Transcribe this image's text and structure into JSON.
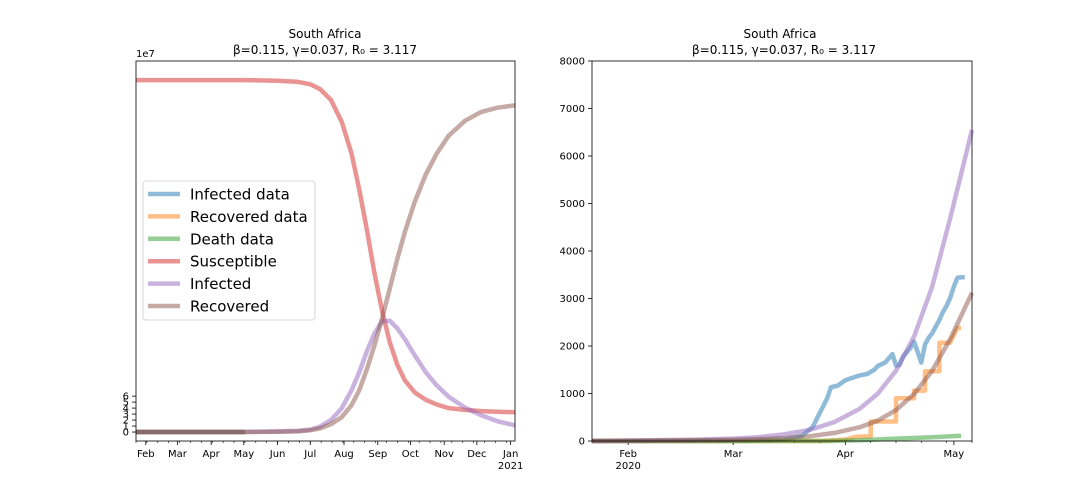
{
  "chart_data": [
    {
      "type": "line",
      "title": "South Africa",
      "subtitle": "β=0.115, γ=0.037, R₀ = 3.117",
      "y_offset_label": "1e7",
      "xlim": [
        "2020-01-23",
        "2021-01-05"
      ],
      "ylim": [
        -1.5,
        62
      ],
      "y_scale_multiplier": 10000000,
      "x_ticks": [
        {
          "date": "2020-02-01",
          "label": "Feb"
        },
        {
          "date": "2020-03-01",
          "label": "Mar"
        },
        {
          "date": "2020-04-01",
          "label": "Apr"
        },
        {
          "date": "2020-05-01",
          "label": "May"
        },
        {
          "date": "2020-06-01",
          "label": "Jun"
        },
        {
          "date": "2020-07-01",
          "label": "Jul"
        },
        {
          "date": "2020-08-01",
          "label": "Aug"
        },
        {
          "date": "2020-09-01",
          "label": "Sep"
        },
        {
          "date": "2020-10-01",
          "label": "Oct"
        },
        {
          "date": "2020-11-01",
          "label": "Nov"
        },
        {
          "date": "2020-12-01",
          "label": "Dec"
        },
        {
          "date": "2021-01-01",
          "label": "Jan",
          "label2": "2021"
        }
      ],
      "y_ticks": [
        0,
        1,
        2,
        3,
        4,
        5,
        6
      ],
      "legend": {
        "placement": "center-left",
        "entries": [
          "Infected data",
          "Recovered data",
          "Death data",
          "Susceptible",
          "Infected",
          "Recovered"
        ]
      },
      "grid": false,
      "series": [
        {
          "name": "Infected data",
          "color": "#1f77b4",
          "x": [
            "2020-01-23",
            "2020-05-02"
          ],
          "y": [
            0.0,
            0.0
          ]
        },
        {
          "name": "Recovered data",
          "color": "#ff7f0e",
          "x": [
            "2020-01-23",
            "2020-05-02"
          ],
          "y": [
            0.0,
            0.0
          ]
        },
        {
          "name": "Death data",
          "color": "#2ca02c",
          "x": [
            "2020-01-23",
            "2020-05-02"
          ],
          "y": [
            0.0,
            0.0
          ]
        },
        {
          "name": "Susceptible",
          "color": "#d62728",
          "x": [
            "2020-01-23",
            "2020-03-01",
            "2020-05-01",
            "2020-06-01",
            "2020-06-20",
            "2020-07-01",
            "2020-07-10",
            "2020-07-20",
            "2020-07-30",
            "2020-08-08",
            "2020-08-15",
            "2020-08-22",
            "2020-08-29",
            "2020-09-05",
            "2020-09-12",
            "2020-09-19",
            "2020-09-26",
            "2020-10-05",
            "2020-10-15",
            "2020-10-25",
            "2020-11-05",
            "2020-11-20",
            "2020-12-05",
            "2020-12-20",
            "2021-01-05"
          ],
          "y": [
            58.8,
            58.8,
            58.8,
            58.7,
            58.5,
            58.1,
            57.3,
            55.5,
            51.8,
            46.5,
            40.5,
            33.8,
            26.5,
            20.2,
            15.0,
            11.2,
            8.6,
            6.6,
            5.4,
            4.6,
            4.0,
            3.7,
            3.5,
            3.4,
            3.3
          ]
        },
        {
          "name": "Infected",
          "color": "#9467bd",
          "x": [
            "2020-01-23",
            "2020-05-01",
            "2020-06-01",
            "2020-06-20",
            "2020-07-01",
            "2020-07-10",
            "2020-07-20",
            "2020-07-30",
            "2020-08-08",
            "2020-08-15",
            "2020-08-22",
            "2020-08-29",
            "2020-09-05",
            "2020-09-12",
            "2020-09-19",
            "2020-09-26",
            "2020-10-05",
            "2020-10-15",
            "2020-10-25",
            "2020-11-05",
            "2020-11-20",
            "2020-12-05",
            "2020-12-20",
            "2021-01-05"
          ],
          "y": [
            0.0,
            0.0,
            0.1,
            0.2,
            0.4,
            0.9,
            2.0,
            4.0,
            7.0,
            10.0,
            13.5,
            16.5,
            18.5,
            18.6,
            17.3,
            15.5,
            12.8,
            10.0,
            7.8,
            5.9,
            4.1,
            2.8,
            1.8,
            1.1
          ]
        },
        {
          "name": "Recovered",
          "color": "#8c564b",
          "x": [
            "2020-01-23",
            "2020-05-01",
            "2020-06-01",
            "2020-06-20",
            "2020-07-01",
            "2020-07-10",
            "2020-07-20",
            "2020-07-30",
            "2020-08-08",
            "2020-08-15",
            "2020-08-22",
            "2020-08-29",
            "2020-09-05",
            "2020-09-12",
            "2020-09-19",
            "2020-09-26",
            "2020-10-05",
            "2020-10-15",
            "2020-10-25",
            "2020-11-05",
            "2020-11-20",
            "2020-12-05",
            "2020-12-20",
            "2021-01-05"
          ],
          "y": [
            0.0,
            0.0,
            0.05,
            0.1,
            0.3,
            0.6,
            1.3,
            2.5,
            4.5,
            7.0,
            10.5,
            14.5,
            19.0,
            24.0,
            29.0,
            33.5,
            38.5,
            43.0,
            46.5,
            49.5,
            52.0,
            53.5,
            54.2,
            54.6
          ]
        }
      ]
    },
    {
      "type": "line",
      "title": "South Africa",
      "subtitle": "β=0.115, γ=0.037, R₀ = 3.117",
      "xlim": [
        "2020-01-22",
        "2020-05-06"
      ],
      "ylim": [
        0,
        8000
      ],
      "x_ticks": [
        {
          "date": "2020-02-01",
          "label": "Feb",
          "label2": "2020"
        },
        {
          "date": "2020-03-01",
          "label": "Mar"
        },
        {
          "date": "2020-04-01",
          "label": "Apr"
        },
        {
          "date": "2020-05-01",
          "label": "May"
        }
      ],
      "y_ticks": [
        0,
        1000,
        2000,
        3000,
        4000,
        5000,
        6000,
        7000,
        8000
      ],
      "grid": false,
      "series": [
        {
          "name": "Infected data",
          "color": "#1f77b4",
          "x": [
            "2020-01-22",
            "2020-03-05",
            "2020-03-15",
            "2020-03-20",
            "2020-03-23",
            "2020-03-25",
            "2020-03-27",
            "2020-03-28",
            "2020-03-30",
            "2020-04-01",
            "2020-04-03",
            "2020-04-05",
            "2020-04-07",
            "2020-04-09",
            "2020-04-10",
            "2020-04-12",
            "2020-04-14",
            "2020-04-15",
            "2020-04-16",
            "2020-04-17",
            "2020-04-19",
            "2020-04-20",
            "2020-04-22",
            "2020-04-23",
            "2020-04-24",
            "2020-04-25",
            "2020-04-26",
            "2020-04-27",
            "2020-04-28",
            "2020-04-29",
            "2020-04-30",
            "2020-05-01",
            "2020-05-02",
            "2020-05-04"
          ],
          "y": [
            0,
            0,
            30,
            110,
            300,
            600,
            900,
            1130,
            1170,
            1280,
            1330,
            1380,
            1410,
            1500,
            1580,
            1650,
            1830,
            1590,
            1600,
            1780,
            1960,
            2090,
            1650,
            2030,
            2170,
            2270,
            2410,
            2550,
            2720,
            2850,
            3020,
            3250,
            3440,
            3450
          ]
        },
        {
          "name": "Recovered data",
          "color": "#ff7f0e",
          "x": [
            "2020-01-22",
            "2020-03-25",
            "2020-04-01",
            "2020-04-04",
            "2020-04-08",
            "2020-04-08",
            "2020-04-15",
            "2020-04-15",
            "2020-04-20",
            "2020-04-20",
            "2020-04-23",
            "2020-04-23",
            "2020-04-27",
            "2020-04-27",
            "2020-04-30",
            "2020-04-30",
            "2020-05-02",
            "2020-05-03"
          ],
          "y": [
            0,
            0,
            30,
            90,
            100,
            410,
            410,
            900,
            900,
            1060,
            1060,
            1470,
            1470,
            2070,
            2070,
            2090,
            2380,
            2380
          ]
        },
        {
          "name": "Death data",
          "color": "#2ca02c",
          "x": [
            "2020-01-22",
            "2020-03-27",
            "2020-04-05",
            "2020-04-15",
            "2020-04-25",
            "2020-05-03"
          ],
          "y": [
            0,
            1,
            15,
            50,
            80,
            110
          ]
        },
        {
          "name": "Infected",
          "color": "#9467bd",
          "x": [
            "2020-01-22",
            "2020-02-01",
            "2020-02-10",
            "2020-02-20",
            "2020-03-01",
            "2020-03-08",
            "2020-03-15",
            "2020-03-22",
            "2020-03-29",
            "2020-04-05",
            "2020-04-10",
            "2020-04-15",
            "2020-04-20",
            "2020-04-25",
            "2020-04-30",
            "2020-05-06"
          ],
          "y": [
            0,
            10,
            20,
            30,
            50,
            80,
            140,
            230,
            400,
            680,
            1000,
            1480,
            2200,
            3250,
            4700,
            6550
          ]
        },
        {
          "name": "Recovered",
          "color": "#8c564b",
          "x": [
            "2020-01-22",
            "2020-02-01",
            "2020-02-10",
            "2020-02-20",
            "2020-03-01",
            "2020-03-08",
            "2020-03-15",
            "2020-03-22",
            "2020-03-29",
            "2020-04-05",
            "2020-04-10",
            "2020-04-15",
            "2020-04-20",
            "2020-04-25",
            "2020-04-30",
            "2020-05-06"
          ],
          "y": [
            0,
            3,
            8,
            15,
            25,
            40,
            60,
            100,
            170,
            290,
            430,
            650,
            990,
            1480,
            2150,
            3120
          ]
        }
      ]
    }
  ]
}
